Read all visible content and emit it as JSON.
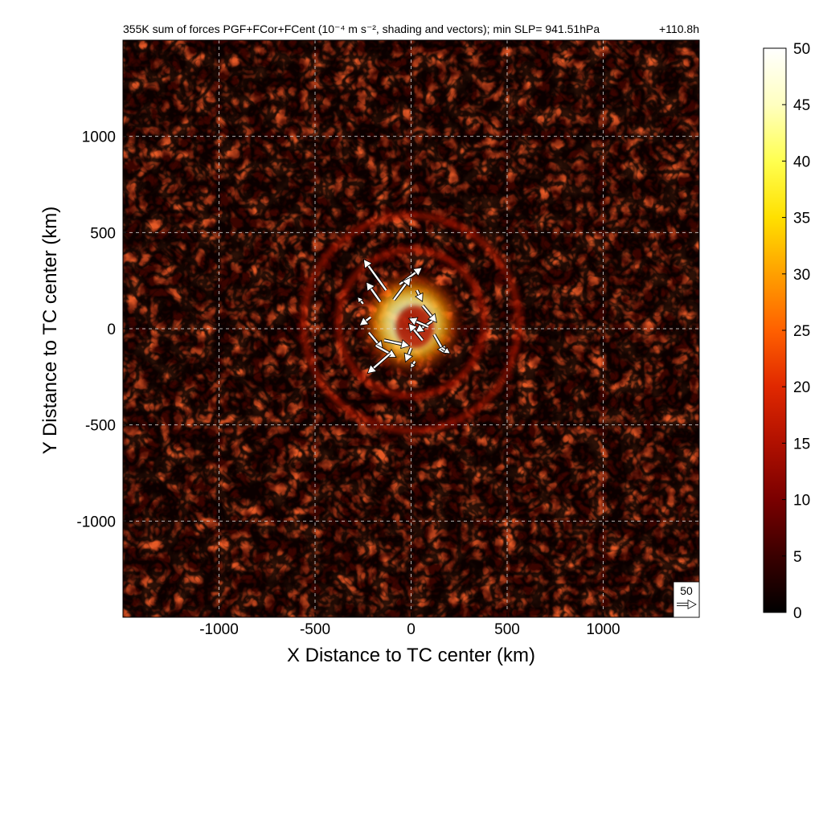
{
  "chart_data": {
    "type": "heatmap",
    "title": "355K sum of forces PGF+FCor+FCent (10⁻⁴ m s⁻², shading and vectors); min SLP= 941.51hPa",
    "time_label": "+110.8h",
    "xlabel": "X Distance to TC center (km)",
    "ylabel": "Y Distance to TC center (km)",
    "xlim": [
      -1500,
      1500
    ],
    "ylim": [
      -1500,
      1500
    ],
    "x_ticks": [
      -1000,
      -500,
      0,
      500,
      1000
    ],
    "y_ticks": [
      -1000,
      -500,
      0,
      500,
      1000
    ],
    "x_tick_labels": [
      "-1000",
      "-500",
      "0",
      "500",
      "1000"
    ],
    "y_tick_labels": [
      "-1000",
      "-500",
      "0",
      "500",
      "1000"
    ],
    "grid": true,
    "colorbar": {
      "min": 0,
      "max": 50,
      "ticks": [
        0,
        5,
        10,
        15,
        20,
        25,
        30,
        35,
        40,
        45,
        50
      ],
      "tick_labels": [
        "0",
        "5",
        "10",
        "15",
        "20",
        "25",
        "30",
        "35",
        "40",
        "45",
        "50"
      ],
      "colors": [
        "#000000",
        "#3a0000",
        "#7a0000",
        "#b01000",
        "#e02800",
        "#ff6000",
        "#ffa000",
        "#ffe000",
        "#ffff50",
        "#ffffc0",
        "#ffffff"
      ]
    },
    "reference_vector": {
      "label": "50",
      "magnitude": 50
    },
    "features": [
      {
        "name": "eyewall",
        "x": 0,
        "y": 30,
        "radius_km": 220,
        "peak_value": 50
      },
      {
        "name": "inner-rainband",
        "radius_km": 380,
        "value": 12
      },
      {
        "name": "outer-rainband",
        "radius_km": 560,
        "value": 10
      }
    ],
    "vectors": [
      {
        "x": -130,
        "y": 200,
        "u": -40,
        "v": 55
      },
      {
        "x": -60,
        "y": 230,
        "u": 40,
        "v": 30
      },
      {
        "x": -160,
        "y": 140,
        "u": -25,
        "v": 35
      },
      {
        "x": -210,
        "y": 60,
        "u": -20,
        "v": -15
      },
      {
        "x": -220,
        "y": -20,
        "u": 25,
        "v": -30
      },
      {
        "x": -180,
        "y": -90,
        "u": 35,
        "v": -20
      },
      {
        "x": -110,
        "y": -130,
        "u": -40,
        "v": -35
      },
      {
        "x": -140,
        "y": -60,
        "u": 45,
        "v": -10
      },
      {
        "x": -90,
        "y": 150,
        "u": 30,
        "v": 40
      },
      {
        "x": 60,
        "y": 120,
        "u": 25,
        "v": -30
      },
      {
        "x": 110,
        "y": 40,
        "u": -30,
        "v": -20
      },
      {
        "x": 120,
        "y": -30,
        "u": 20,
        "v": -35
      },
      {
        "x": 60,
        "y": -60,
        "u": -25,
        "v": 30
      },
      {
        "x": 90,
        "y": 10,
        "u": -35,
        "v": 15
      },
      {
        "x": 30,
        "y": 200,
        "u": 10,
        "v": -20
      },
      {
        "x": 0,
        "y": -100,
        "u": -10,
        "v": -25
      },
      {
        "x": -250,
        "y": 130,
        "u": -10,
        "v": 12
      },
      {
        "x": 160,
        "y": -100,
        "u": 15,
        "v": -10
      },
      {
        "x": 20,
        "y": -170,
        "u": -8,
        "v": -12
      }
    ]
  }
}
